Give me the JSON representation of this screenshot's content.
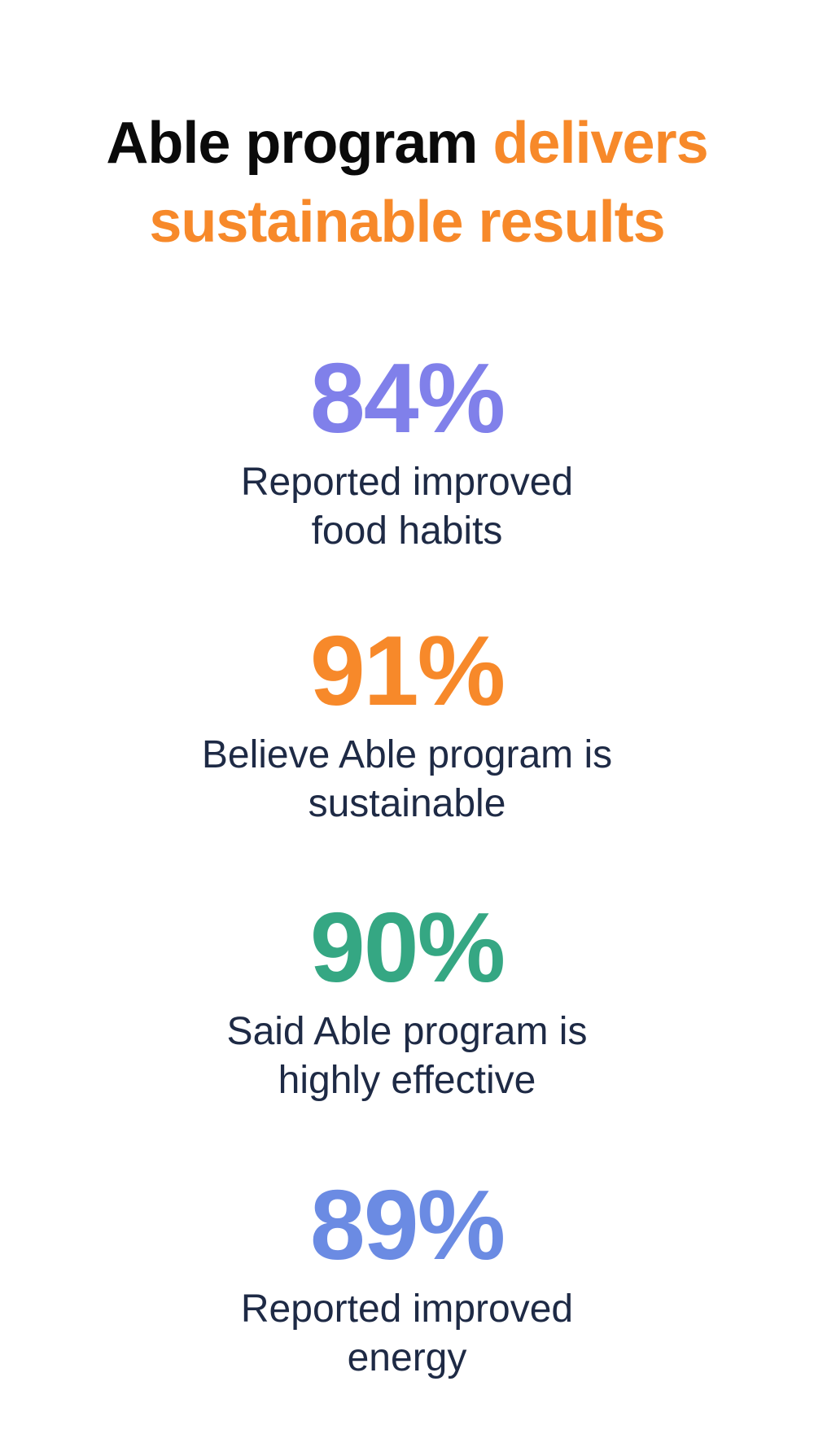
{
  "title": {
    "part1": "Able program",
    "part2": "delivers sustainable results",
    "color1": "#0a0a0a",
    "color2": "#f7892a"
  },
  "stats": [
    {
      "value": "84%",
      "color": "#8080ea",
      "lines": [
        "Reported improved",
        "food habits"
      ]
    },
    {
      "value": "91%",
      "color": "#f7892a",
      "lines": [
        "Believe Able program is",
        "sustainable"
      ]
    },
    {
      "value": "90%",
      "color": "#35a783",
      "lines": [
        "Said Able program is",
        "highly effective"
      ]
    },
    {
      "value": "89%",
      "color": "#6b8be3",
      "lines": [
        "Reported improved",
        "energy"
      ]
    }
  ]
}
